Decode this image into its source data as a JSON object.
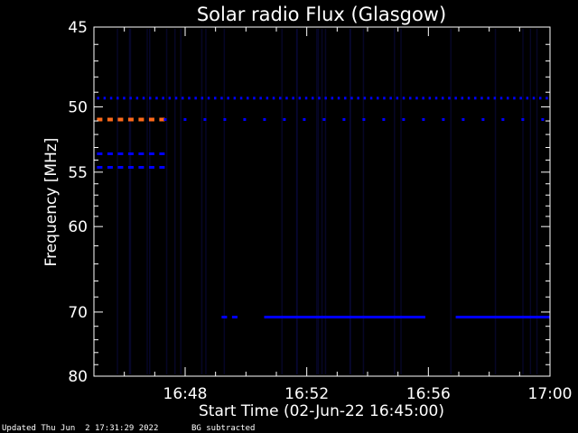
{
  "footer": {
    "updated": "Updated Thu Jun  2 17:31:29 2022",
    "note": "BG subtracted"
  },
  "colors": {
    "background": "#000000",
    "axes": "#ffffff",
    "low_intensity": "#0000ff",
    "faint": "#0a0a40",
    "high_intensity": "#ff6a1a"
  },
  "chart_data": {
    "type": "heatmap",
    "title": "Solar radio Flux (Glasgow)",
    "xlabel": "Start Time (02-Jun-22 16:45:00)",
    "ylabel": "Frequency [MHz]",
    "x_unit": "minutes after 16:45:00 UT",
    "xlim": [
      0,
      15
    ],
    "ylim": [
      45,
      80
    ],
    "y_scale": "reciprocal",
    "y_inverted": true,
    "x_ticks": [
      {
        "value": 3,
        "label": "16:48"
      },
      {
        "value": 7,
        "label": "16:52"
      },
      {
        "value": 11,
        "label": "16:56"
      },
      {
        "value": 15,
        "label": "17:00"
      }
    ],
    "y_ticks": [
      {
        "value": 45,
        "label": "45"
      },
      {
        "value": 50,
        "label": "50"
      },
      {
        "value": 55,
        "label": "55"
      },
      {
        "value": 60,
        "label": "60"
      },
      {
        "value": 70,
        "label": "70"
      },
      {
        "value": 80,
        "label": "80"
      }
    ],
    "features": [
      {
        "name": "interference-49.4",
        "freq_mhz": 49.4,
        "t_start": 0.1,
        "t_end": 15,
        "intensity": "low",
        "pattern": "dotted"
      },
      {
        "name": "interference-50.9-strong",
        "freq_mhz": 50.9,
        "t_start": 0.1,
        "t_end": 2.3,
        "intensity": "high",
        "pattern": "dashed"
      },
      {
        "name": "interference-50.9-weak",
        "freq_mhz": 50.9,
        "t_start": 2.3,
        "t_end": 15,
        "intensity": "low",
        "pattern": "sparse"
      },
      {
        "name": "interference-53.5",
        "freq_mhz": 53.5,
        "t_start": 0.1,
        "t_end": 2.3,
        "intensity": "low",
        "pattern": "dashed"
      },
      {
        "name": "interference-54.6",
        "freq_mhz": 54.6,
        "t_start": 0.1,
        "t_end": 2.3,
        "intensity": "low",
        "pattern": "dashed"
      },
      {
        "name": "interference-70.7-a",
        "freq_mhz": 70.7,
        "t_start": 4.2,
        "t_end": 4.6,
        "intensity": "low",
        "pattern": "dashed"
      },
      {
        "name": "interference-70.7-b",
        "freq_mhz": 70.7,
        "t_start": 5.6,
        "t_end": 10.9,
        "intensity": "low",
        "pattern": "solid"
      },
      {
        "name": "interference-70.7-c",
        "freq_mhz": 70.7,
        "t_start": 11.9,
        "t_end": 15,
        "intensity": "low",
        "pattern": "solid"
      }
    ]
  }
}
